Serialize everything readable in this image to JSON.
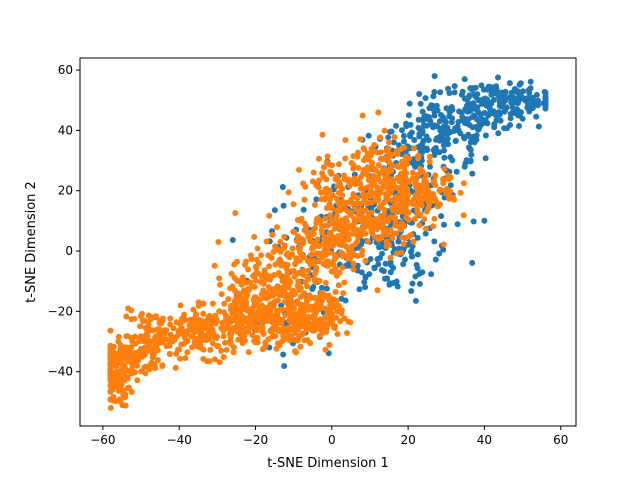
{
  "chart_data": {
    "type": "scatter",
    "title": "",
    "xlabel": "t-SNE Dimension 1",
    "ylabel": "t-SNE Dimension 2",
    "xlim": [
      -66,
      64
    ],
    "ylim": [
      -58,
      64
    ],
    "xticks": [
      -60,
      -40,
      -20,
      0,
      20,
      40,
      60
    ],
    "yticks": [
      -40,
      -20,
      0,
      20,
      40,
      60
    ],
    "xtick_labels": [
      "−60",
      "−40",
      "−20",
      "0",
      "20",
      "40",
      "60"
    ],
    "ytick_labels": [
      "−40",
      "−20",
      "0",
      "20",
      "40",
      "60"
    ],
    "grid": false,
    "legend": "none",
    "colors": {
      "series_a": "#1f77b4",
      "series_b": "#ff7f0e"
    },
    "clusters": {
      "series_a": [
        [
          -10,
          -25,
          8,
          5,
          25
        ],
        [
          8,
          5,
          10,
          8,
          120
        ],
        [
          15,
          12,
          8,
          8,
          80
        ],
        [
          22,
          28,
          8,
          7,
          110
        ],
        [
          30,
          40,
          7,
          6,
          130
        ],
        [
          40,
          48,
          6,
          4,
          130
        ],
        [
          50,
          50,
          5,
          3,
          90
        ],
        [
          -5,
          -5,
          8,
          8,
          40
        ],
        [
          15,
          -5,
          6,
          6,
          40
        ]
      ],
      "series_b": [
        [
          -57,
          -42,
          2,
          5,
          130
        ],
        [
          -53,
          -35,
          4,
          3,
          90
        ],
        [
          -47,
          -28,
          4,
          4,
          80
        ],
        [
          -32,
          -27,
          7,
          4,
          190
        ],
        [
          -22,
          -22,
          4,
          4,
          100
        ],
        [
          -10,
          -22,
          5,
          5,
          170
        ],
        [
          -3,
          -22,
          3,
          4,
          80
        ],
        [
          -15,
          -8,
          6,
          6,
          100
        ],
        [
          -5,
          0,
          6,
          6,
          110
        ],
        [
          5,
          8,
          6,
          6,
          130
        ],
        [
          12,
          15,
          6,
          7,
          140
        ],
        [
          18,
          20,
          5,
          7,
          110
        ],
        [
          0,
          20,
          5,
          5,
          60
        ],
        [
          10,
          28,
          6,
          5,
          80
        ],
        [
          25,
          22,
          4,
          6,
          60
        ],
        [
          -18,
          -15,
          6,
          5,
          70
        ]
      ]
    }
  }
}
